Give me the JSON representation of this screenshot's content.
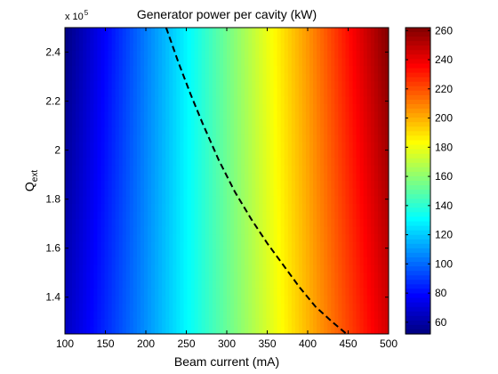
{
  "chart_data": {
    "type": "heatmap",
    "title": "Generator power per cavity (kW)",
    "xlabel": "Beam current (mA)",
    "ylabel_main": "Q",
    "ylabel_sub": "ext",
    "xlim": [
      100,
      500
    ],
    "ylim": [
      1.25,
      2.5
    ],
    "y_exponent_base": "x 10",
    "y_exponent_power": "5",
    "x_ticks": [
      100,
      150,
      200,
      250,
      300,
      350,
      400,
      450,
      500
    ],
    "x_tick_labels": [
      "100",
      "150",
      "200",
      "250",
      "300",
      "350",
      "400",
      "450",
      "500"
    ],
    "y_ticks": [
      1.4,
      1.6,
      1.8,
      2.0,
      2.2,
      2.4
    ],
    "y_tick_labels": [
      "1.4",
      "1.6",
      "1.8",
      "2",
      "2.2",
      "2.4"
    ],
    "colorbar": {
      "range": [
        52,
        262
      ],
      "ticks": [
        60,
        80,
        100,
        120,
        140,
        160,
        180,
        200,
        220,
        240,
        260
      ],
      "tick_labels": [
        "60",
        "80",
        "100",
        "120",
        "140",
        "160",
        "180",
        "200",
        "220",
        "240",
        "260"
      ],
      "colormap": "jet"
    },
    "field_samples": {
      "x": [
        100,
        200,
        300,
        400,
        500
      ],
      "y": [
        1.25,
        2.5
      ],
      "values_at_y_low": [
        65,
        108,
        152,
        198,
        245
      ],
      "values_at_y_high": [
        52,
        104,
        154,
        205,
        262
      ]
    },
    "optimal_curve": {
      "style": "dashed",
      "color": "#000000",
      "points": [
        [
          225,
          2.5
        ],
        [
          240,
          2.36
        ],
        [
          255,
          2.23
        ],
        [
          270,
          2.11
        ],
        [
          290,
          1.96
        ],
        [
          310,
          1.83
        ],
        [
          330,
          1.72
        ],
        [
          350,
          1.62
        ],
        [
          370,
          1.53
        ],
        [
          390,
          1.44
        ],
        [
          410,
          1.36
        ],
        [
          430,
          1.3
        ],
        [
          448,
          1.25
        ]
      ]
    }
  }
}
